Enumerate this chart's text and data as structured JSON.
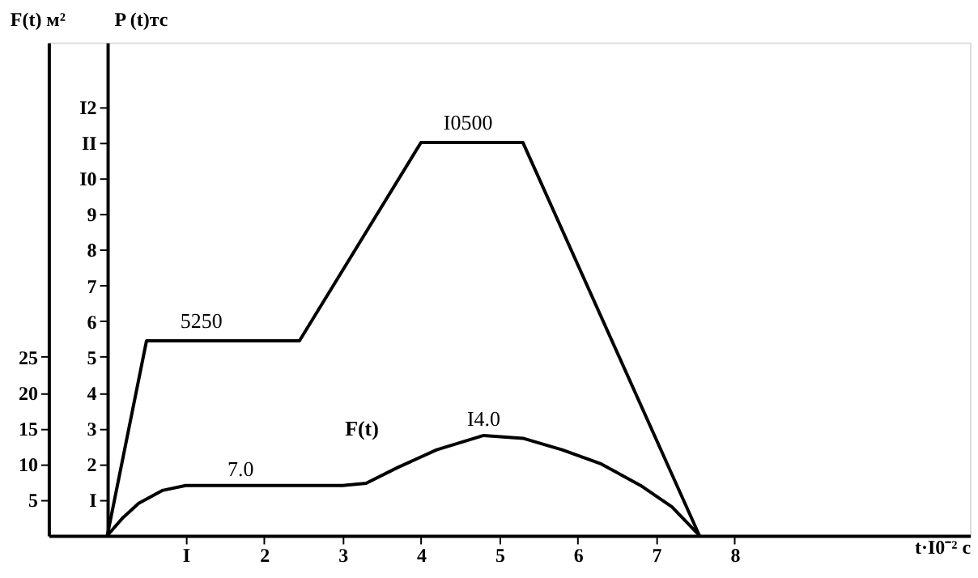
{
  "chart_data": {
    "type": "line",
    "xlabel": "t·I0⁻² c",
    "ylabel": "P (t)тс",
    "y2label": "F(t) м²",
    "xlim": [
      -0.75,
      11
    ],
    "xticks": [
      {
        "value": 1,
        "label": "I"
      },
      2,
      3,
      4,
      5,
      6,
      7,
      8
    ],
    "ylim": [
      0,
      13.8
    ],
    "yticks": [
      {
        "value": 1,
        "label": "I"
      },
      2,
      3,
      4,
      5,
      6,
      7,
      8,
      9,
      {
        "value": 10,
        "label": "I0"
      },
      {
        "value": 11,
        "label": "II"
      },
      {
        "value": 12,
        "label": "I2"
      }
    ],
    "y2lim": [
      0,
      69
    ],
    "y2ticks": [
      5,
      10,
      15,
      20,
      25
    ],
    "annotations": [
      {
        "text": "5250",
        "x": 1.2,
        "y": 5.45
      },
      {
        "text": "I0500",
        "x": 4.6,
        "y": 11
      }
    ],
    "grid": false,
    "legend": false,
    "marker": "none",
    "line_style": "solid",
    "series": [
      {
        "color": "#000000",
        "x": [
          0,
          0.5,
          1.0,
          2.45,
          4.0,
          4.6,
          5.3,
          7.55
        ],
        "values": [
          0,
          5.45,
          5.45,
          5.45,
          11,
          11,
          11,
          0
        ]
      },
      {
        "name": "F(t)",
        "axis": "y2",
        "color": "#000000",
        "x": [
          0,
          0.2,
          0.4,
          0.7,
          1.0,
          1.7,
          2.5,
          3.0,
          3.3,
          3.7,
          4.2,
          4.8,
          5.3,
          5.8,
          6.3,
          6.8,
          7.2,
          7.55
        ],
        "values": [
          0,
          2.5,
          4.5,
          6.3,
          7.0,
          7.0,
          7.0,
          7.0,
          7.3,
          9.5,
          12,
          14.0,
          13.6,
          12,
          10,
          7,
          4,
          0
        ],
        "value_labels": [
          null,
          null,
          null,
          null,
          null,
          "7.0",
          null,
          null,
          null,
          null,
          null,
          "I4.0",
          null,
          null,
          null,
          null,
          null,
          null
        ]
      }
    ]
  }
}
